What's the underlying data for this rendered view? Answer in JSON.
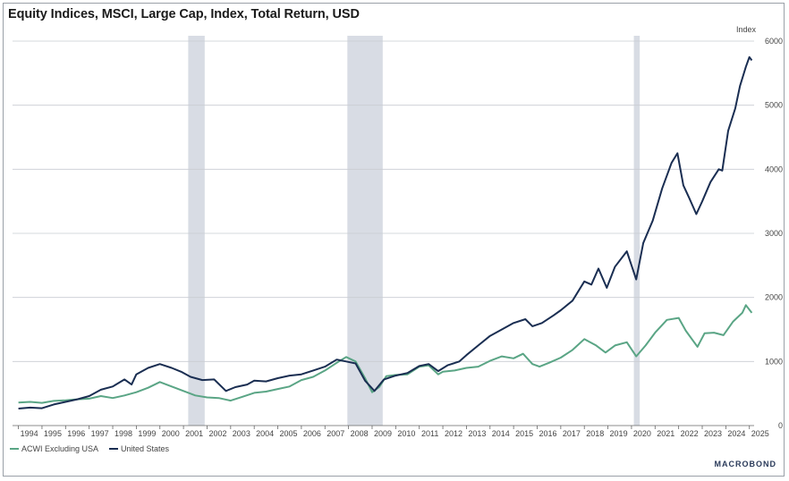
{
  "chart_data": {
    "type": "line",
    "title": "Equity Indices, MSCI, Large Cap, Index, Total Return, USD",
    "ylabel": "Index",
    "ylim": [
      0,
      6000
    ],
    "yticks": [
      0,
      1000,
      2000,
      3000,
      4000,
      5000,
      6000
    ],
    "xlim": [
      1993.75,
      2025.2
    ],
    "xticks": [
      "1994",
      "1995",
      "1996",
      "1997",
      "1998",
      "1999",
      "2000",
      "2001",
      "2002",
      "2003",
      "2004",
      "2005",
      "2006",
      "2007",
      "2008",
      "2009",
      "2010",
      "2011",
      "2012",
      "2013",
      "2014",
      "2015",
      "2016",
      "2017",
      "2018",
      "2019",
      "2020",
      "2021",
      "2022",
      "2023",
      "2024",
      "2025"
    ],
    "grid": true,
    "legend_position": "bottom-left",
    "recessions": [
      [
        2001.2,
        2001.9
      ],
      [
        2007.95,
        2009.45
      ],
      [
        2020.1,
        2020.35
      ]
    ],
    "series": [
      {
        "name": "ACWI Excluding USA",
        "color": "#5aa585",
        "points": [
          [
            1994.0,
            360
          ],
          [
            1994.5,
            370
          ],
          [
            1995.0,
            355
          ],
          [
            1995.5,
            385
          ],
          [
            1996.0,
            395
          ],
          [
            1996.5,
            410
          ],
          [
            1997.0,
            420
          ],
          [
            1997.5,
            460
          ],
          [
            1998.0,
            430
          ],
          [
            1998.5,
            470
          ],
          [
            1999.0,
            520
          ],
          [
            1999.5,
            590
          ],
          [
            2000.0,
            680
          ],
          [
            2000.5,
            610
          ],
          [
            2001.0,
            540
          ],
          [
            2001.5,
            470
          ],
          [
            2002.0,
            440
          ],
          [
            2002.5,
            430
          ],
          [
            2003.0,
            390
          ],
          [
            2003.5,
            450
          ],
          [
            2004.0,
            510
          ],
          [
            2004.5,
            530
          ],
          [
            2005.0,
            570
          ],
          [
            2005.5,
            610
          ],
          [
            2006.0,
            710
          ],
          [
            2006.5,
            760
          ],
          [
            2007.0,
            860
          ],
          [
            2007.5,
            980
          ],
          [
            2007.9,
            1070
          ],
          [
            2008.3,
            1000
          ],
          [
            2008.7,
            740
          ],
          [
            2009.0,
            520
          ],
          [
            2009.3,
            600
          ],
          [
            2009.6,
            770
          ],
          [
            2010.0,
            790
          ],
          [
            2010.5,
            800
          ],
          [
            2011.0,
            920
          ],
          [
            2011.4,
            940
          ],
          [
            2011.8,
            800
          ],
          [
            2012.0,
            840
          ],
          [
            2012.5,
            860
          ],
          [
            2013.0,
            900
          ],
          [
            2013.5,
            920
          ],
          [
            2014.0,
            1010
          ],
          [
            2014.5,
            1080
          ],
          [
            2015.0,
            1050
          ],
          [
            2015.4,
            1120
          ],
          [
            2015.8,
            960
          ],
          [
            2016.1,
            920
          ],
          [
            2016.5,
            980
          ],
          [
            2017.0,
            1060
          ],
          [
            2017.5,
            1180
          ],
          [
            2018.0,
            1350
          ],
          [
            2018.5,
            1250
          ],
          [
            2018.9,
            1140
          ],
          [
            2019.3,
            1250
          ],
          [
            2019.8,
            1300
          ],
          [
            2020.2,
            1080
          ],
          [
            2020.6,
            1250
          ],
          [
            2021.0,
            1450
          ],
          [
            2021.5,
            1650
          ],
          [
            2022.0,
            1680
          ],
          [
            2022.3,
            1480
          ],
          [
            2022.8,
            1230
          ],
          [
            2023.1,
            1440
          ],
          [
            2023.5,
            1450
          ],
          [
            2023.9,
            1410
          ],
          [
            2024.3,
            1620
          ],
          [
            2024.7,
            1760
          ],
          [
            2024.85,
            1880
          ],
          [
            2025.1,
            1760
          ]
        ]
      },
      {
        "name": "United States",
        "color": "#1a2e52",
        "points": [
          [
            1994.0,
            265
          ],
          [
            1994.5,
            280
          ],
          [
            1995.0,
            270
          ],
          [
            1995.5,
            330
          ],
          [
            1996.0,
            370
          ],
          [
            1996.5,
            410
          ],
          [
            1997.0,
            460
          ],
          [
            1997.5,
            560
          ],
          [
            1998.0,
            610
          ],
          [
            1998.5,
            720
          ],
          [
            1998.8,
            640
          ],
          [
            1999.0,
            800
          ],
          [
            1999.5,
            900
          ],
          [
            2000.0,
            960
          ],
          [
            2000.5,
            900
          ],
          [
            2000.9,
            840
          ],
          [
            2001.3,
            760
          ],
          [
            2001.8,
            710
          ],
          [
            2002.3,
            720
          ],
          [
            2002.8,
            540
          ],
          [
            2003.2,
            600
          ],
          [
            2003.7,
            640
          ],
          [
            2004.0,
            700
          ],
          [
            2004.5,
            690
          ],
          [
            2005.0,
            740
          ],
          [
            2005.5,
            780
          ],
          [
            2006.0,
            800
          ],
          [
            2006.5,
            860
          ],
          [
            2007.0,
            920
          ],
          [
            2007.5,
            1030
          ],
          [
            2007.9,
            1000
          ],
          [
            2008.3,
            970
          ],
          [
            2008.7,
            700
          ],
          [
            2009.1,
            540
          ],
          [
            2009.5,
            720
          ],
          [
            2010.0,
            780
          ],
          [
            2010.5,
            820
          ],
          [
            2011.0,
            930
          ],
          [
            2011.4,
            960
          ],
          [
            2011.8,
            850
          ],
          [
            2012.2,
            940
          ],
          [
            2012.7,
            1000
          ],
          [
            2013.0,
            1100
          ],
          [
            2013.5,
            1250
          ],
          [
            2014.0,
            1400
          ],
          [
            2014.5,
            1500
          ],
          [
            2015.0,
            1600
          ],
          [
            2015.5,
            1660
          ],
          [
            2015.8,
            1550
          ],
          [
            2016.2,
            1600
          ],
          [
            2016.7,
            1720
          ],
          [
            2017.0,
            1800
          ],
          [
            2017.5,
            1950
          ],
          [
            2018.0,
            2250
          ],
          [
            2018.3,
            2200
          ],
          [
            2018.6,
            2450
          ],
          [
            2018.95,
            2150
          ],
          [
            2019.3,
            2480
          ],
          [
            2019.8,
            2720
          ],
          [
            2020.2,
            2280
          ],
          [
            2020.5,
            2850
          ],
          [
            2020.9,
            3200
          ],
          [
            2021.3,
            3700
          ],
          [
            2021.7,
            4100
          ],
          [
            2021.95,
            4250
          ],
          [
            2022.2,
            3750
          ],
          [
            2022.45,
            3550
          ],
          [
            2022.75,
            3300
          ],
          [
            2023.0,
            3500
          ],
          [
            2023.35,
            3800
          ],
          [
            2023.7,
            4000
          ],
          [
            2023.85,
            3980
          ],
          [
            2024.1,
            4600
          ],
          [
            2024.4,
            4950
          ],
          [
            2024.6,
            5300
          ],
          [
            2024.85,
            5600
          ],
          [
            2025.0,
            5750
          ],
          [
            2025.1,
            5700
          ]
        ]
      }
    ]
  },
  "brand": "MACROBOND"
}
